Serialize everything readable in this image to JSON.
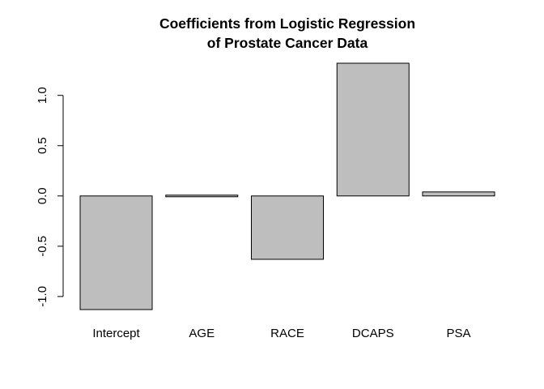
{
  "chart_data": {
    "type": "bar",
    "title_lines": [
      "Coefficients from Logistic Regression",
      "of Prostate Cancer Data"
    ],
    "categories": [
      "Intercept",
      "AGE",
      "RACE",
      "DCAPS",
      "PSA"
    ],
    "values": [
      -1.13,
      -0.01,
      -0.63,
      1.32,
      0.04
    ],
    "yticks": [
      -1.0,
      -0.5,
      0.0,
      0.5,
      1.0
    ],
    "ytick_labels": [
      "-1.0",
      "-0.5",
      "0.0",
      "0.5",
      "1.0"
    ],
    "xlabel": "",
    "ylabel": "",
    "ylim": [
      -1.13,
      1.32
    ],
    "bar_color": "#bebebe",
    "border_color": "#000000",
    "grid": false,
    "legend": "none"
  }
}
